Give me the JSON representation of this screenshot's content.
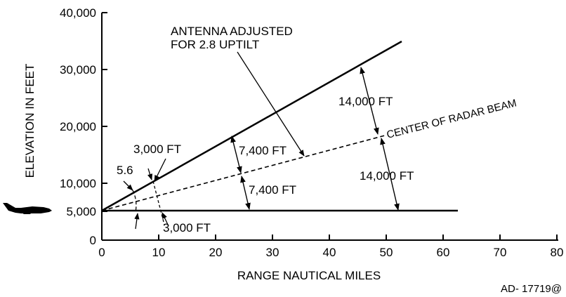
{
  "diagram": {
    "y_axis": {
      "title": "ELEVATION IN FEET",
      "ticks": [
        "0",
        "5,000",
        "10,000",
        "20,000",
        "30,000",
        "40,000"
      ]
    },
    "x_axis": {
      "title": "RANGE NAUTICAL MILES",
      "ticks": [
        "0",
        "10",
        "20",
        "30",
        "40",
        "50",
        "60",
        "70",
        "80"
      ]
    },
    "annotations": {
      "antenna_line1": "ANTENNA ADJUSTED",
      "antenna_line2": "FOR 2.8   UPTILT",
      "beam_center": "CENTER OF RADAR BEAM",
      "upper_14000": "14,000 FT",
      "lower_14000": "14,000 FT",
      "upper_7400": "7,400 FT",
      "lower_7400": "7,400 FT",
      "upper_3000": "3,000 FT",
      "lower_3000": "3,000 FT",
      "angle": "5.6"
    },
    "reference": "AD- 17719@",
    "aircraft_icon": "aircraft-silhouette-icon"
  }
}
